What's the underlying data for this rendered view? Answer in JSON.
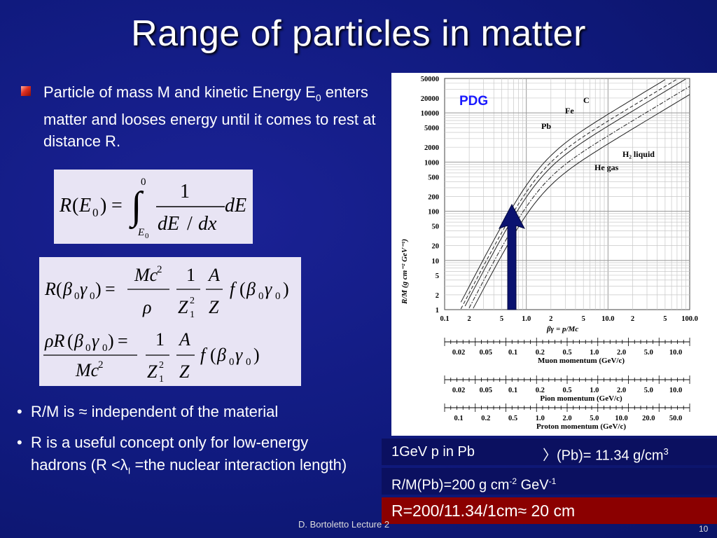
{
  "slide": {
    "title": "Range of particles in matter",
    "bullet_main_part1": "Particle of mass M and kinetic Energy E",
    "bullet_main_sub": "0",
    "bullet_main_part2": " enters matter and looses energy until it comes to rest at distance R.",
    "bullet2": "R/M  is ≈ independent of the material",
    "bullet3": "R is a useful concept only for low-energy hadrons (R <λ",
    "bullet3_sub": "I",
    "bullet3_end": " =the nuclear interaction length)",
    "bullet_dot": "•",
    "row1_left": "1GeV p in Pb",
    "row1_right": "〉(Pb)= 11.34 g/cm",
    "row1_sup": "3",
    "row2_a": "R/M(Pb)=200 g cm",
    "row2_sup1": "-2",
    "row2_b": " GeV",
    "row2_sup2": "-1",
    "row3": "R=200/11.34/1cm≈ 20 cm",
    "footer": "D. Bortoletto Lecture 2",
    "page_number": "10"
  },
  "plot": {
    "source_label": "PDG",
    "y_axis_label": "R/M (g cm⁻² GeV⁻¹)",
    "y_ticks": [
      "50000",
      "20000",
      "10000",
      "5000",
      "2000",
      "1000",
      "500",
      "200",
      "100",
      "50",
      "20",
      "10",
      "5",
      "2",
      "1"
    ],
    "x_ticks": [
      "0.1",
      "2",
      "5",
      "1.0",
      "2",
      "5",
      "10.0",
      "2",
      "5",
      "100.0"
    ],
    "x_label": "βγ = p/Mc",
    "curve_labels": [
      "C",
      "Fe",
      "Pb",
      "H₂ liquid",
      "He gas"
    ],
    "muon_ticks": [
      "0.02",
      "0.05",
      "0.1",
      "0.2",
      "0.5",
      "1.0",
      "2.0",
      "5.0",
      "10.0"
    ],
    "muon_label": "Muon momentum (GeV/c)",
    "pion_ticks": [
      "0.02",
      "0.05",
      "0.1",
      "0.2",
      "0.5",
      "1.0",
      "2.0",
      "5.0",
      "10.0"
    ],
    "pion_label": "Pion momentum (GeV/c)",
    "proton_ticks": [
      "0.1",
      "0.2",
      "0.5",
      "1.0",
      "2.0",
      "5.0",
      "10.0",
      "20.0",
      "50.0"
    ],
    "proton_label": "Proton momentum (GeV/c)"
  },
  "colors": {
    "background": "#101a7e",
    "arrow": "#0a1270",
    "row_dark": "#0b1060",
    "row_red": "#8b0000",
    "pdg_label": "#1a1aff"
  }
}
